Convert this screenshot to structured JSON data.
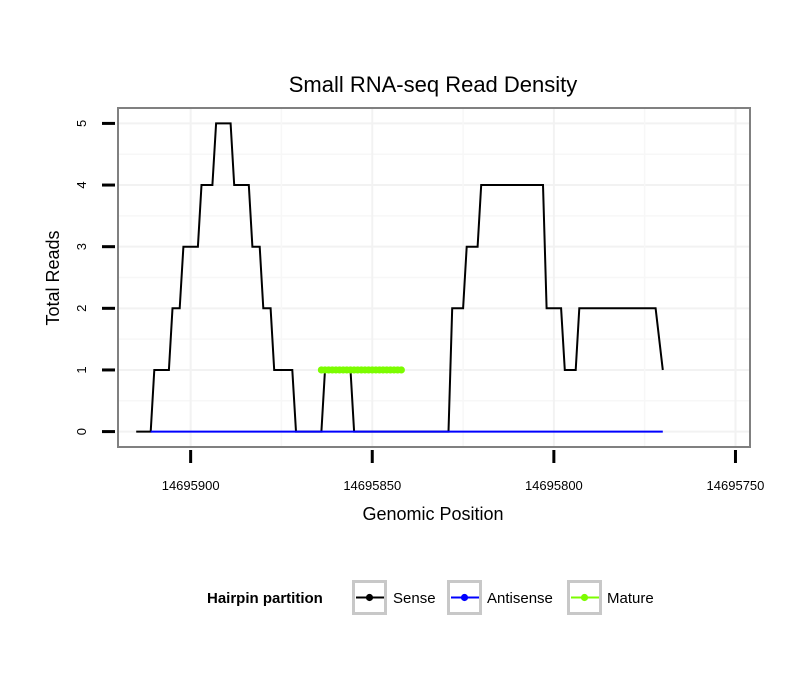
{
  "chart_data": {
    "type": "line",
    "title": "Small RNA-seq Read Density",
    "xlabel": "Genomic Position",
    "ylabel": "Total Reads",
    "xlim": [
      14695920,
      14695746
    ],
    "ylim": [
      -0.25,
      5.25
    ],
    "x_reversed": true,
    "x_ticks": [
      14695900,
      14695850,
      14695800,
      14695750
    ],
    "x_tick_labels": [
      "14695900",
      "14695850",
      "14695800",
      "14695750"
    ],
    "y_ticks": [
      0,
      1,
      2,
      3,
      4,
      5
    ],
    "y_tick_labels": [
      "0",
      "1",
      "2",
      "3",
      "4",
      "5"
    ],
    "grid": true,
    "legend": {
      "title": "Hairpin partition",
      "position": "bottom",
      "entries": [
        "Sense",
        "Antisense",
        "Mature"
      ]
    },
    "series": [
      {
        "name": "Sense",
        "color": "#000000",
        "x": [
          14695915,
          14695911,
          14695910,
          14695906,
          14695905,
          14695903,
          14695902,
          14695898,
          14695897,
          14695894,
          14695893,
          14695889,
          14695888,
          14695884,
          14695883,
          14695881,
          14695880,
          14695878,
          14695877,
          14695872,
          14695871,
          14695864,
          14695863,
          14695856,
          14695855,
          14695829,
          14695828,
          14695825,
          14695824,
          14695821,
          14695820,
          14695817,
          14695816,
          14695803,
          14695802,
          14695798,
          14695797,
          14695794,
          14695793,
          14695790,
          14695789,
          14695772,
          14695770
        ],
        "y": [
          0,
          0,
          1,
          1,
          2,
          2,
          3,
          3,
          4,
          4,
          5,
          5,
          4,
          4,
          3,
          3,
          2,
          2,
          1,
          1,
          0,
          0,
          1,
          1,
          0,
          0,
          2,
          2,
          3,
          3,
          4,
          4,
          4,
          4,
          2,
          2,
          1,
          1,
          2,
          2,
          2,
          2,
          1
        ]
      },
      {
        "name": "Antisense",
        "color": "#0000ff",
        "x": [
          14695911,
          14695770
        ],
        "y": [
          0,
          0
        ]
      },
      {
        "name": "Mature",
        "color": "#7cfc00",
        "x": [
          14695864,
          14695863,
          14695862,
          14695861,
          14695860,
          14695859,
          14695858,
          14695857,
          14695856,
          14695855,
          14695854,
          14695853,
          14695852,
          14695851,
          14695850,
          14695849,
          14695848,
          14695847,
          14695846,
          14695845,
          14695844,
          14695843,
          14695842
        ],
        "y": [
          1,
          1,
          1,
          1,
          1,
          1,
          1,
          1,
          1,
          1,
          1,
          1,
          1,
          1,
          1,
          1,
          1,
          1,
          1,
          1,
          1,
          1,
          1
        ]
      }
    ]
  }
}
